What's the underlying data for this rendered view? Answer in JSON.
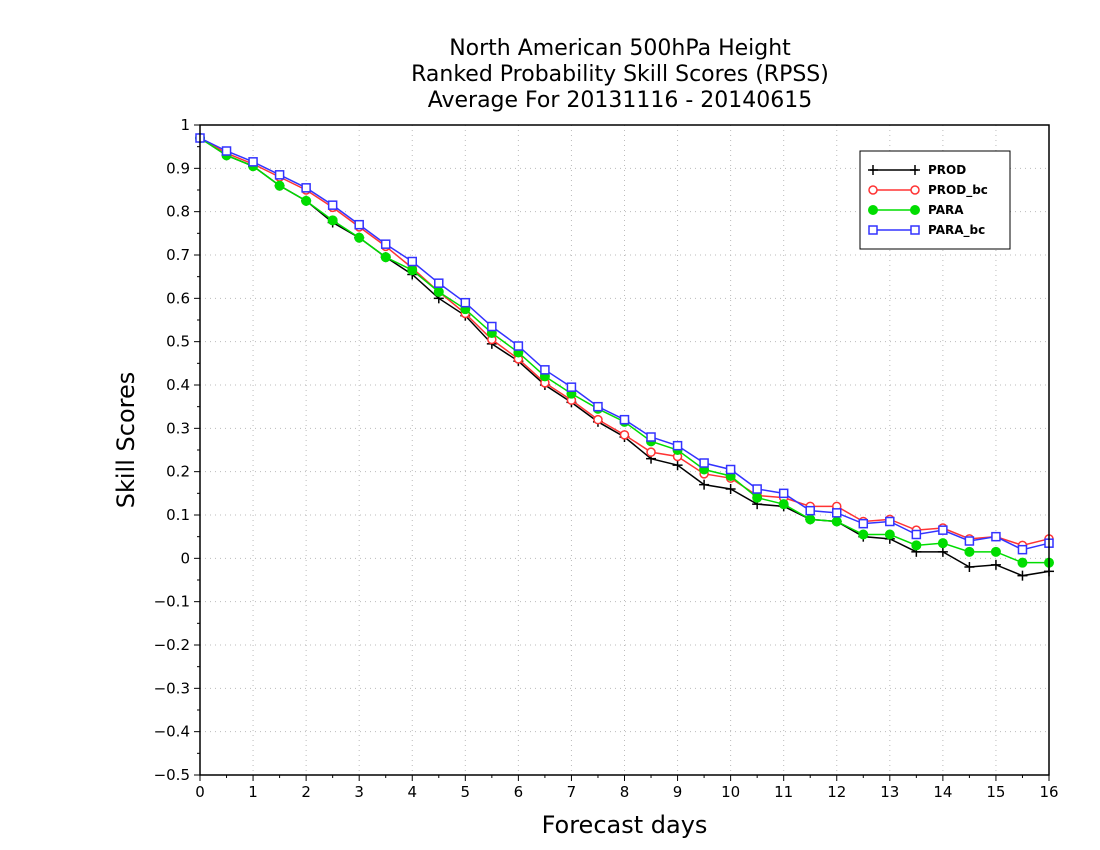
{
  "chart_data": {
    "type": "line",
    "title": [
      "North American 500hPa Height",
      "Ranked Probability Skill Scores (RPSS)",
      " Average For 20131116 - 20140615"
    ],
    "xlabel": "Forecast days",
    "ylabel": "Skill Scores",
    "xlim": [
      0,
      16
    ],
    "ylim": [
      -0.5,
      1
    ],
    "x_ticks": [
      0,
      1,
      2,
      3,
      4,
      5,
      6,
      7,
      8,
      9,
      10,
      11,
      12,
      13,
      14,
      15,
      16
    ],
    "y_ticks": [
      -0.5,
      -0.4,
      -0.3,
      -0.2,
      -0.1,
      0,
      0.1,
      0.2,
      0.3,
      0.4,
      0.5,
      0.6,
      0.7,
      0.8,
      0.9,
      1
    ],
    "y_tick_labels": [
      "−0.5",
      "−0.4",
      "−0.3",
      "−0.2",
      "−0.1",
      "0",
      "0.1",
      "0.2",
      "0.3",
      "0.4",
      "0.5",
      "0.6",
      "0.7",
      "0.8",
      "0.9",
      "1"
    ],
    "grid": true,
    "legend_position": "top-right",
    "x": [
      0,
      0.5,
      1,
      1.5,
      2,
      2.5,
      3,
      3.5,
      4,
      4.5,
      5,
      5.5,
      6,
      6.5,
      7,
      7.5,
      8,
      8.5,
      9,
      9.5,
      10,
      10.5,
      11,
      11.5,
      12,
      12.5,
      13,
      13.5,
      14,
      14.5,
      15,
      15.5,
      16
    ],
    "series": [
      {
        "name": "PROD",
        "color": "#000000",
        "marker": "plus",
        "values": [
          0.97,
          0.93,
          0.905,
          0.86,
          0.825,
          0.775,
          0.74,
          0.695,
          0.655,
          0.6,
          0.56,
          0.495,
          0.455,
          0.4,
          0.36,
          0.315,
          0.28,
          0.23,
          0.215,
          0.17,
          0.16,
          0.125,
          0.12,
          0.09,
          0.085,
          0.05,
          0.045,
          0.015,
          0.015,
          -0.02,
          -0.015,
          -0.04,
          -0.03
        ]
      },
      {
        "name": "PROD_bc",
        "color": "#ff3333",
        "marker": "circle-open",
        "values": [
          0.97,
          0.935,
          0.91,
          0.88,
          0.85,
          0.81,
          0.765,
          0.72,
          0.67,
          0.615,
          0.565,
          0.505,
          0.46,
          0.405,
          0.365,
          0.32,
          0.285,
          0.245,
          0.235,
          0.195,
          0.185,
          0.145,
          0.14,
          0.12,
          0.12,
          0.085,
          0.09,
          0.065,
          0.07,
          0.045,
          0.05,
          0.03,
          0.045
        ]
      },
      {
        "name": "PARA",
        "color": "#00dd00",
        "marker": "circle-filled",
        "values": [
          0.97,
          0.93,
          0.905,
          0.86,
          0.825,
          0.78,
          0.74,
          0.695,
          0.665,
          0.615,
          0.575,
          0.52,
          0.475,
          0.42,
          0.38,
          0.345,
          0.315,
          0.27,
          0.25,
          0.205,
          0.19,
          0.14,
          0.125,
          0.09,
          0.085,
          0.055,
          0.055,
          0.03,
          0.035,
          0.015,
          0.015,
          -0.01,
          -0.01
        ]
      },
      {
        "name": "PARA_bc",
        "color": "#3333ff",
        "marker": "square-open",
        "values": [
          0.97,
          0.94,
          0.915,
          0.885,
          0.855,
          0.815,
          0.77,
          0.725,
          0.685,
          0.635,
          0.59,
          0.535,
          0.49,
          0.435,
          0.395,
          0.35,
          0.32,
          0.28,
          0.26,
          0.22,
          0.205,
          0.16,
          0.15,
          0.11,
          0.105,
          0.08,
          0.085,
          0.055,
          0.065,
          0.04,
          0.05,
          0.02,
          0.035
        ]
      }
    ]
  }
}
